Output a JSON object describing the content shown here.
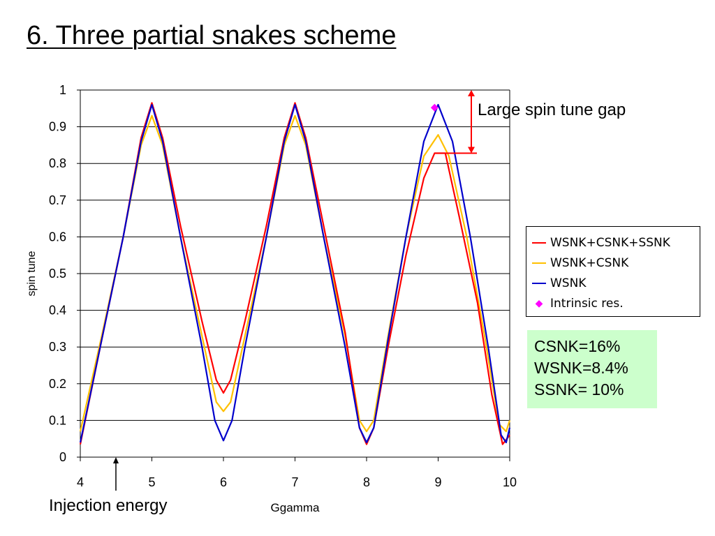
{
  "title": "6. Three partial snakes scheme",
  "chart_data": {
    "type": "line",
    "xlabel": "Ggamma",
    "ylabel": "spin tune",
    "xlim": [
      4,
      10
    ],
    "ylim": [
      0,
      1
    ],
    "xticks": [
      "4",
      "5",
      "6",
      "7",
      "8",
      "9",
      "10"
    ],
    "yticks": [
      "0",
      "0.1",
      "0.2",
      "0.3",
      "0.4",
      "0.5",
      "0.6",
      "0.7",
      "0.8",
      "0.9",
      "1"
    ],
    "grid": "horizontal",
    "legend_position": "right",
    "series": [
      {
        "name": "WSNK+CSNK+SSNK",
        "color": "#ff0000",
        "points": [
          [
            4.0,
            0.035
          ],
          [
            4.3,
            0.32
          ],
          [
            4.6,
            0.6
          ],
          [
            4.85,
            0.87
          ],
          [
            5.0,
            0.965
          ],
          [
            5.15,
            0.87
          ],
          [
            5.4,
            0.63
          ],
          [
            5.7,
            0.37
          ],
          [
            5.9,
            0.21
          ],
          [
            6.0,
            0.175
          ],
          [
            6.1,
            0.21
          ],
          [
            6.3,
            0.37
          ],
          [
            6.6,
            0.63
          ],
          [
            6.85,
            0.87
          ],
          [
            7.0,
            0.965
          ],
          [
            7.15,
            0.87
          ],
          [
            7.4,
            0.63
          ],
          [
            7.7,
            0.34
          ],
          [
            7.9,
            0.08
          ],
          [
            8.0,
            0.035
          ],
          [
            8.1,
            0.08
          ],
          [
            8.3,
            0.3
          ],
          [
            8.55,
            0.55
          ],
          [
            8.8,
            0.76
          ],
          [
            8.95,
            0.828
          ],
          [
            9.1,
            0.828
          ],
          [
            9.3,
            0.65
          ],
          [
            9.55,
            0.42
          ],
          [
            9.75,
            0.17
          ],
          [
            9.9,
            0.035
          ],
          [
            10.0,
            0.06
          ]
        ]
      },
      {
        "name": "WSNK+CSNK",
        "color": "#ffc000",
        "points": [
          [
            4.0,
            0.07
          ],
          [
            4.3,
            0.33
          ],
          [
            4.6,
            0.6
          ],
          [
            4.85,
            0.85
          ],
          [
            5.0,
            0.93
          ],
          [
            5.15,
            0.85
          ],
          [
            5.4,
            0.6
          ],
          [
            5.7,
            0.33
          ],
          [
            5.9,
            0.15
          ],
          [
            6.0,
            0.125
          ],
          [
            6.1,
            0.15
          ],
          [
            6.3,
            0.33
          ],
          [
            6.6,
            0.6
          ],
          [
            6.85,
            0.85
          ],
          [
            7.0,
            0.93
          ],
          [
            7.15,
            0.85
          ],
          [
            7.4,
            0.6
          ],
          [
            7.7,
            0.33
          ],
          [
            7.9,
            0.1
          ],
          [
            8.0,
            0.07
          ],
          [
            8.1,
            0.1
          ],
          [
            8.3,
            0.33
          ],
          [
            8.55,
            0.6
          ],
          [
            8.8,
            0.82
          ],
          [
            9.0,
            0.878
          ],
          [
            9.15,
            0.82
          ],
          [
            9.4,
            0.6
          ],
          [
            9.65,
            0.33
          ],
          [
            9.85,
            0.09
          ],
          [
            9.95,
            0.07
          ],
          [
            10.0,
            0.1
          ]
        ]
      },
      {
        "name": "WSNK",
        "color": "#0000cc",
        "points": [
          [
            4.0,
            0.04
          ],
          [
            4.3,
            0.32
          ],
          [
            4.6,
            0.6
          ],
          [
            4.85,
            0.86
          ],
          [
            5.0,
            0.96
          ],
          [
            5.15,
            0.86
          ],
          [
            5.4,
            0.6
          ],
          [
            5.7,
            0.3
          ],
          [
            5.88,
            0.1
          ],
          [
            6.0,
            0.045
          ],
          [
            6.12,
            0.1
          ],
          [
            6.3,
            0.3
          ],
          [
            6.6,
            0.6
          ],
          [
            6.85,
            0.86
          ],
          [
            7.0,
            0.96
          ],
          [
            7.15,
            0.86
          ],
          [
            7.4,
            0.6
          ],
          [
            7.7,
            0.3
          ],
          [
            7.9,
            0.08
          ],
          [
            8.0,
            0.04
          ],
          [
            8.1,
            0.08
          ],
          [
            8.3,
            0.32
          ],
          [
            8.55,
            0.6
          ],
          [
            8.8,
            0.86
          ],
          [
            9.0,
            0.96
          ],
          [
            9.2,
            0.86
          ],
          [
            9.45,
            0.6
          ],
          [
            9.7,
            0.3
          ],
          [
            9.88,
            0.06
          ],
          [
            9.95,
            0.04
          ],
          [
            10.0,
            0.08
          ]
        ]
      }
    ],
    "markers": [
      {
        "name": "Intrinsic res.",
        "color": "#ff00ff",
        "x": 8.95,
        "y": 0.952
      }
    ],
    "annotations": [
      {
        "text": "Large spin tune gap"
      },
      {
        "text": "Injection energy"
      }
    ]
  },
  "legend": [
    {
      "label": "WSNK+CSNK+SSNK",
      "color": "#ff0000"
    },
    {
      "label": "WSNK+CSNK",
      "color": "#ffc000"
    },
    {
      "label": "WSNK",
      "color": "#0000cc"
    },
    {
      "label": "Intrinsic res.",
      "color": "#ff00ff",
      "marker": "diamond"
    }
  ],
  "notes": [
    "CSNK=16%",
    "WSNK=8.4%",
    "SSNK= 10%"
  ],
  "annotation_gap": "Large spin tune gap",
  "annotation_injection": "Injection energy"
}
